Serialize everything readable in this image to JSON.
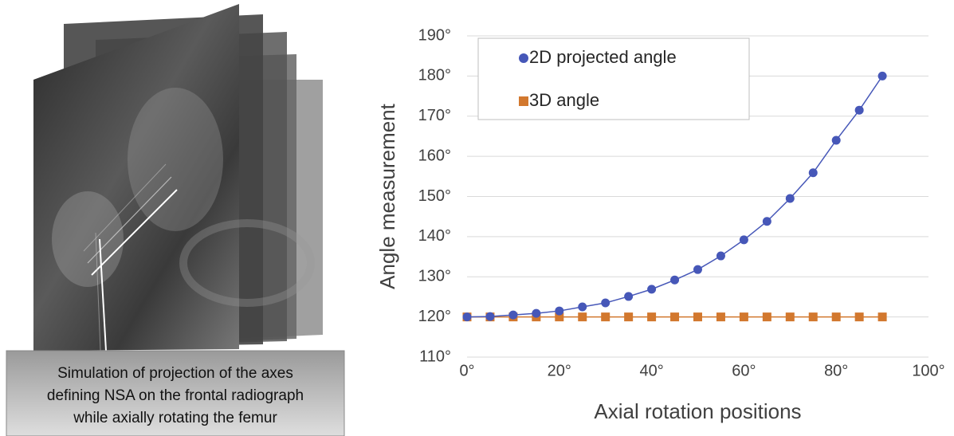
{
  "caption_lines": [
    "Simulation of projection of the axes",
    "defining NSA on the frontal radiograph",
    "while axially rotating the femur"
  ],
  "chart_data": {
    "type": "line",
    "xlabel": "Axial rotation positions",
    "ylabel": "Angle measurement",
    "x": [
      0,
      5,
      10,
      15,
      20,
      25,
      30,
      35,
      40,
      45,
      50,
      55,
      60,
      65,
      70,
      75,
      80,
      85,
      90
    ],
    "series": [
      {
        "name": "2D projected angle",
        "color": "#4657b8",
        "marker": "circle",
        "values": [
          120,
          120.1,
          120.5,
          120.9,
          121.5,
          122.5,
          123.5,
          125.1,
          126.9,
          129.2,
          131.8,
          135.2,
          139.2,
          143.8,
          149.5,
          155.9,
          164,
          171.5,
          180
        ]
      },
      {
        "name": "3D angle",
        "color": "#d2782e",
        "marker": "square",
        "values": [
          120,
          120,
          120,
          120,
          120,
          120,
          120,
          120,
          120,
          120,
          120,
          120,
          120,
          120,
          120,
          120,
          120,
          120,
          120
        ]
      }
    ],
    "xlim": [
      0,
      100
    ],
    "xticks": [
      {
        "value": 0,
        "label": "0°"
      },
      {
        "value": 20,
        "label": "20°"
      },
      {
        "value": 40,
        "label": "40°"
      },
      {
        "value": 60,
        "label": "60°"
      },
      {
        "value": 80,
        "label": "80°"
      },
      {
        "value": 100,
        "label": "100°"
      }
    ],
    "ylim": [
      110,
      190
    ],
    "yticks": [
      {
        "value": 110,
        "label": "110°"
      },
      {
        "value": 120,
        "label": "120°"
      },
      {
        "value": 130,
        "label": "130°"
      },
      {
        "value": 140,
        "label": "140°"
      },
      {
        "value": 150,
        "label": "150°"
      },
      {
        "value": 160,
        "label": "160°"
      },
      {
        "value": 170,
        "label": "170°"
      },
      {
        "value": 180,
        "label": "180°"
      },
      {
        "value": 190,
        "label": "190°"
      }
    ],
    "grid": true,
    "legend": "upper left"
  }
}
